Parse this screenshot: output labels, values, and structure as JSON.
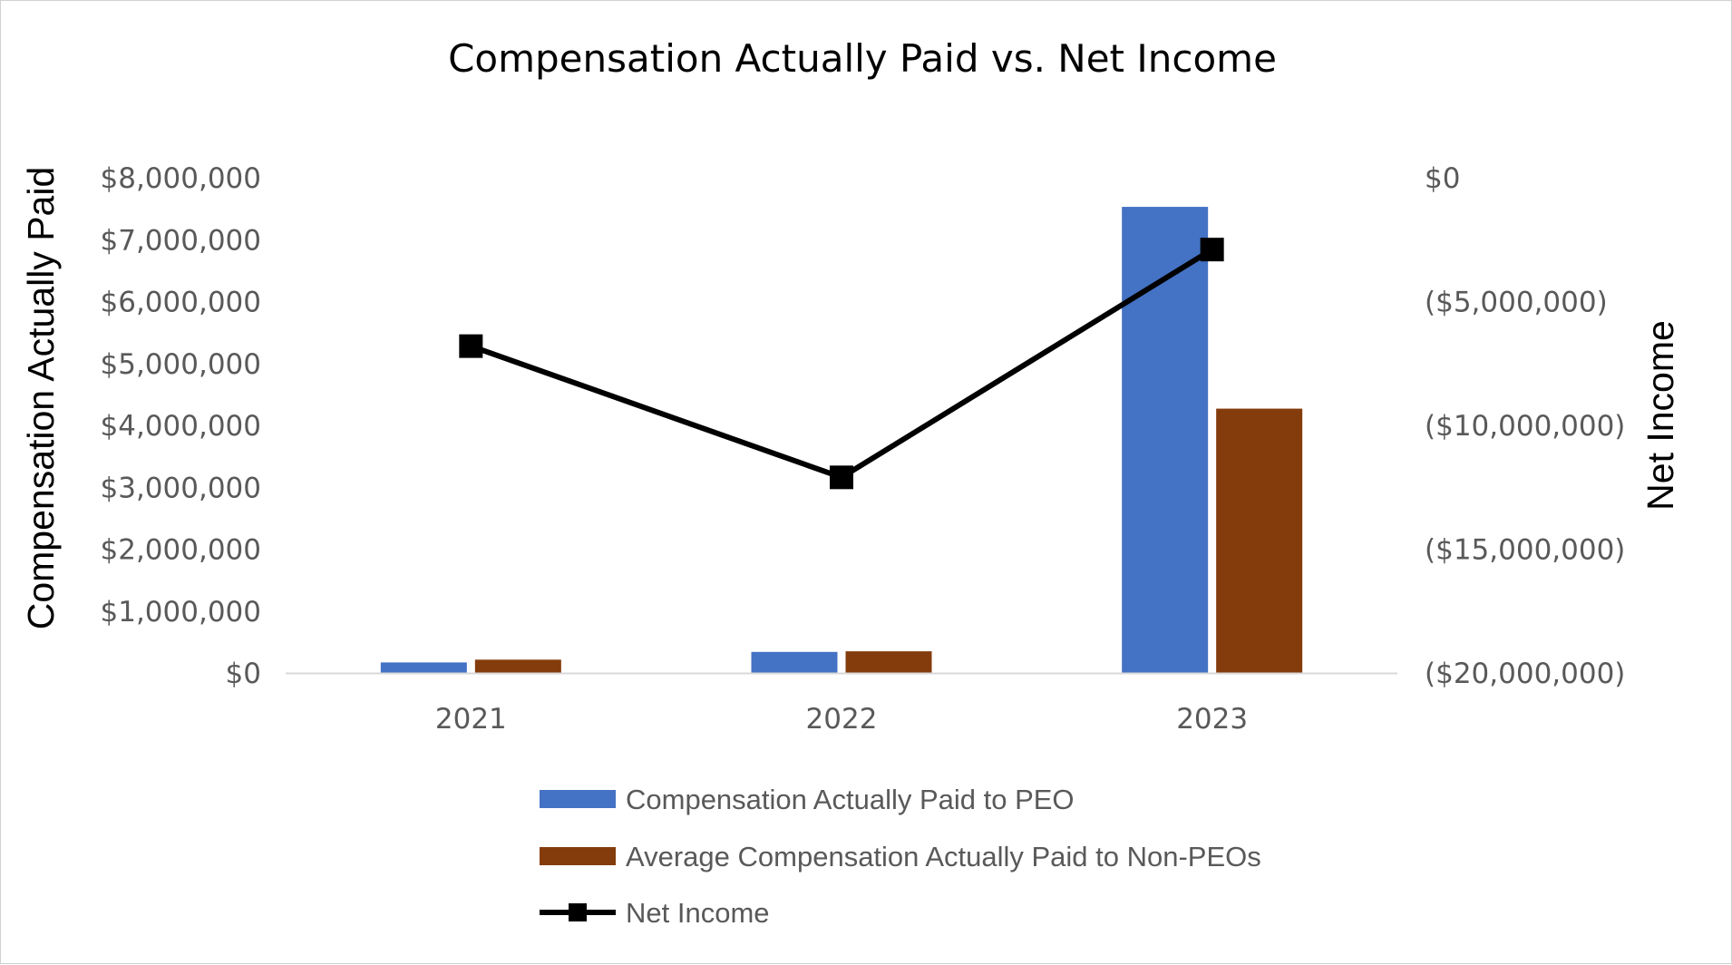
{
  "chart_data": {
    "type": "bar",
    "title": "Compensation Actually Paid vs. Net Income",
    "xlabel": "",
    "ylabel": "Compensation Actually Paid",
    "y2label": "Net Income",
    "categories": [
      "2021",
      "2022",
      "2023"
    ],
    "ylim": [
      0,
      8000000
    ],
    "y2lim": [
      -20000000,
      0
    ],
    "yticks": [
      {
        "value": 0,
        "label": "$0"
      },
      {
        "value": 1000000,
        "label": "$1,000,000"
      },
      {
        "value": 2000000,
        "label": "$2,000,000"
      },
      {
        "value": 3000000,
        "label": "$3,000,000"
      },
      {
        "value": 4000000,
        "label": "$4,000,000"
      },
      {
        "value": 5000000,
        "label": "$5,000,000"
      },
      {
        "value": 6000000,
        "label": "$6,000,000"
      },
      {
        "value": 7000000,
        "label": "$7,000,000"
      },
      {
        "value": 8000000,
        "label": "$8,000,000"
      }
    ],
    "y2ticks": [
      {
        "value": 0,
        "label": "$0"
      },
      {
        "value": -5000000,
        "label": "($5,000,000)"
      },
      {
        "value": -10000000,
        "label": "($10,000,000)"
      },
      {
        "value": -15000000,
        "label": "($15,000,000)"
      },
      {
        "value": -20000000,
        "label": "($20,000,000)"
      }
    ],
    "series": [
      {
        "name": "Compensation Actually Paid to PEO",
        "type": "bar",
        "axis": "left",
        "color": "#4472C4",
        "values": [
          170000,
          340000,
          7530000
        ]
      },
      {
        "name": "Average Compensation Actually Paid to Non-PEOs",
        "type": "bar",
        "axis": "left",
        "color": "#843C0C",
        "values": [
          215000,
          350000,
          4270000
        ]
      },
      {
        "name": "Net Income",
        "type": "line",
        "axis": "right",
        "color": "#000000",
        "marker": "square",
        "values": [
          -6800000,
          -12100000,
          -2900000
        ]
      }
    ],
    "grid": false,
    "legend_position": "bottom"
  }
}
